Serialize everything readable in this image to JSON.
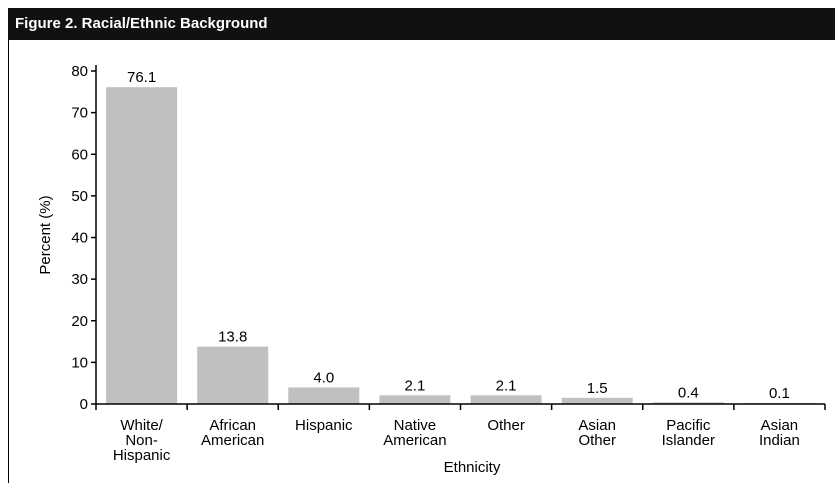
{
  "figure": {
    "title": "Figure 2. Racial/Ethnic Background"
  },
  "chart_data": {
    "type": "bar",
    "title": "Figure 2. Racial/Ethnic Background",
    "xlabel": "Ethnicity",
    "ylabel": "Percent (%)",
    "ylim": [
      0,
      80
    ],
    "yticks": [
      0,
      10,
      20,
      30,
      40,
      50,
      60,
      70,
      80
    ],
    "categories": [
      [
        "White/",
        "Non-",
        "Hispanic"
      ],
      [
        "African",
        "American"
      ],
      [
        "Hispanic"
      ],
      [
        "Native",
        "American"
      ],
      [
        "Other"
      ],
      [
        "Asian",
        "Other"
      ],
      [
        "Pacific",
        "Islander"
      ],
      [
        "Asian",
        "Indian"
      ]
    ],
    "values": [
      76.1,
      13.8,
      4.0,
      2.1,
      2.1,
      1.5,
      0.4,
      0.1
    ],
    "value_labels": [
      "76.1",
      "13.8",
      "4.0",
      "2.1",
      "2.1",
      "1.5",
      "0.4",
      "0.1"
    ],
    "grid": false,
    "legend": false,
    "bar_color": "#c0c0c0",
    "axis_color": "#000000"
  }
}
